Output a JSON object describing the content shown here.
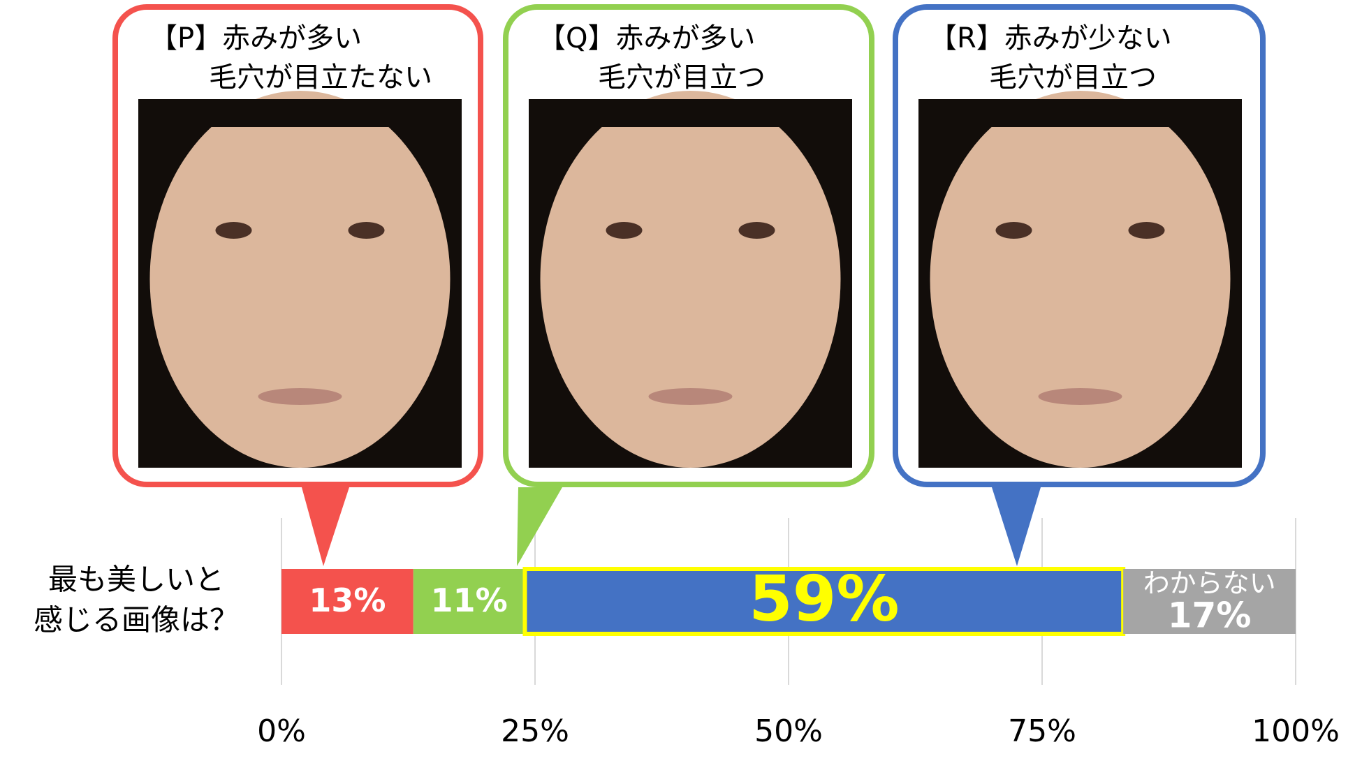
{
  "chart_data": {
    "type": "stacked-bar",
    "category_lines": [
      "最も美しいと",
      "感じる画像は？"
    ],
    "series": [
      {
        "name": "【P】赤みが多い",
        "name2": "毛穴が目立たない",
        "color": "#f4524d",
        "values": [
          13
        ],
        "value_labels": [
          "13%"
        ]
      },
      {
        "name": "【Q】赤みが多い",
        "name2": "毛穴が目立つ",
        "color": "#92d050",
        "values": [
          11
        ],
        "value_labels": [
          "11%"
        ]
      },
      {
        "name": "【R】赤みが少ない",
        "name2": "毛穴が目立つ",
        "color": "#4472c4",
        "values": [
          59
        ],
        "value_labels": [
          "59%"
        ],
        "outline": "#ffff00",
        "label_color": "#ffff00"
      },
      {
        "name": "わからない",
        "color": "#a5a5a5",
        "values": [
          17
        ],
        "value_labels": [
          "17%"
        ]
      }
    ],
    "xlim": [
      0,
      100
    ],
    "xticks": [
      {
        "value": 0,
        "label": "0%"
      },
      {
        "value": 25,
        "label": "25%"
      },
      {
        "value": 50,
        "label": "50%"
      },
      {
        "value": 75,
        "label": "75%"
      },
      {
        "value": 100,
        "label": "100%"
      }
    ],
    "grid": true
  }
}
